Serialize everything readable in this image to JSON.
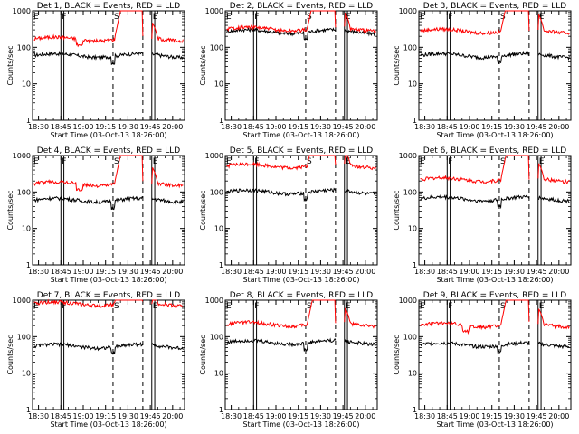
{
  "chart_data": {
    "type": "line",
    "yscale": "log",
    "ylim": [
      1,
      1000
    ],
    "y_ticks": [
      "1",
      "10",
      "100",
      "1000"
    ],
    "ylabel": "Counts/sec",
    "xlabel": "Start Time (03-Oct-13 18:26:00)",
    "x_ticks": [
      "18:30",
      "18:45",
      "19:00",
      "19:15",
      "19:30",
      "19:45",
      "20:00"
    ],
    "x_tick_minutes": [
      30,
      45,
      60,
      75,
      90,
      105,
      120
    ],
    "x_range_minutes": [
      26,
      128
    ],
    "colors": {
      "events": "#000000",
      "lld": "#ff0000"
    },
    "event_markers": [
      {
        "label": "E",
        "minute": 26,
        "style": "solid"
      },
      {
        "label": "F",
        "minute": 45,
        "style": "solid"
      },
      {
        "label": "",
        "minute": 47,
        "style": "solid"
      },
      {
        "label": "S",
        "minute": 80,
        "style": "dashed"
      },
      {
        "label": "",
        "minute": 100,
        "style": "dashed"
      },
      {
        "label": "E",
        "minute": 106,
        "style": "solid"
      },
      {
        "label": "",
        "minute": 108,
        "style": "solid"
      }
    ],
    "panels": [
      {
        "title": "Det 1, BLACK = Events, RED = LLD",
        "events_level": 60,
        "lld_level": 170,
        "lld_dip": true
      },
      {
        "title": "Det 2, BLACK = Events, RED = LLD",
        "events_level": 270,
        "lld_level": 320,
        "lld_dip": false
      },
      {
        "title": "Det 3, BLACK = Events, RED = LLD",
        "events_level": 60,
        "lld_level": 280,
        "lld_dip": false
      },
      {
        "title": "Det 4, BLACK = Events, RED = LLD",
        "events_level": 60,
        "lld_level": 170,
        "lld_dip": true
      },
      {
        "title": "Det 5, BLACK = Events, RED = LLD",
        "events_level": 100,
        "lld_level": 520,
        "lld_dip": false
      },
      {
        "title": "Det 6, BLACK = Events, RED = LLD",
        "events_level": 65,
        "lld_level": 220,
        "lld_dip": false
      },
      {
        "title": "Det 7, BLACK = Events, RED = LLD",
        "events_level": 55,
        "lld_level": 800,
        "lld_dip": false
      },
      {
        "title": "Det 8, BLACK = Events, RED = LLD",
        "events_level": 70,
        "lld_level": 220,
        "lld_dip": false
      },
      {
        "title": "Det 9, BLACK = Events, RED = LLD",
        "events_level": 60,
        "lld_level": 210,
        "lld_dip": true
      }
    ]
  }
}
